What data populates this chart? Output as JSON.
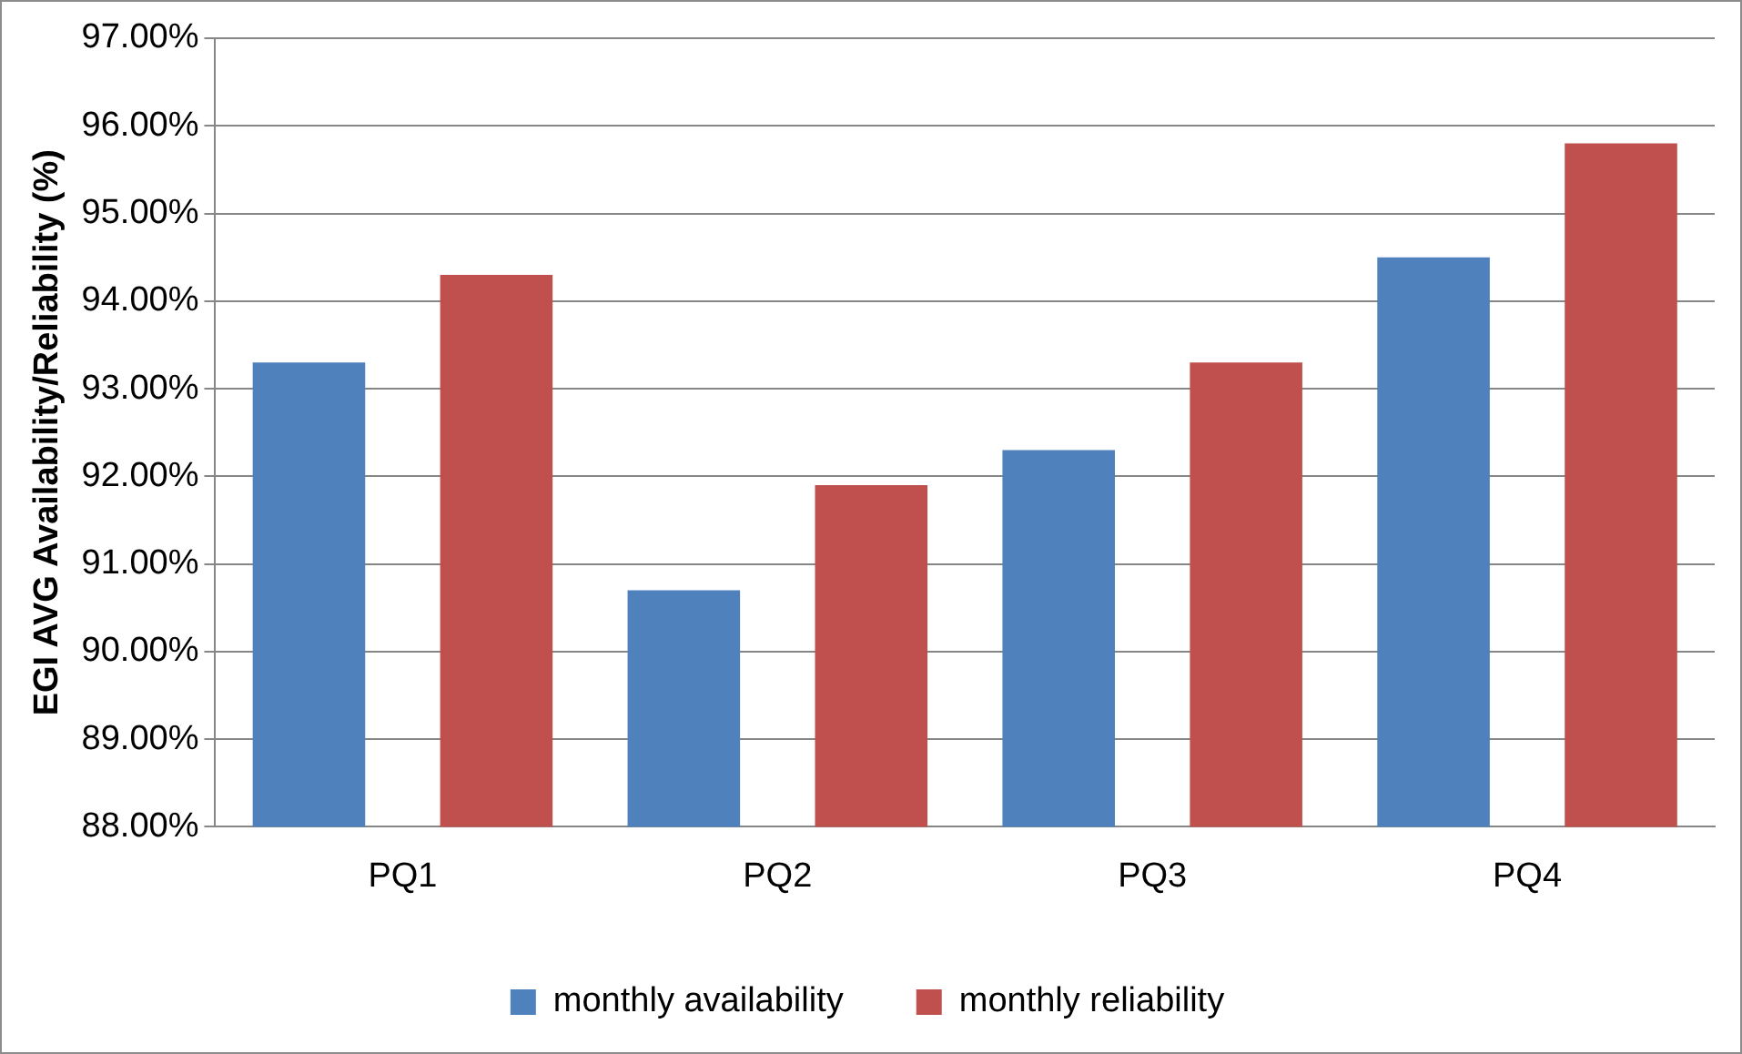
{
  "chart_data": {
    "type": "bar",
    "ylabel": "EGI AVG Availability/Reliability (%)",
    "categories": [
      "PQ1",
      "PQ2",
      "PQ3",
      "PQ4"
    ],
    "series": [
      {
        "name": "monthly availability",
        "color": "#4f81bd",
        "values": [
          93.3,
          90.7,
          92.3,
          94.5
        ]
      },
      {
        "name": "monthly reliability",
        "color": "#c0504d",
        "values": [
          94.3,
          91.9,
          93.3,
          95.8
        ]
      }
    ],
    "ylim": [
      88,
      97
    ],
    "yticks": [
      {
        "value": 88,
        "label": "88.00%"
      },
      {
        "value": 89,
        "label": "89.00%"
      },
      {
        "value": 90,
        "label": "90.00%"
      },
      {
        "value": 91,
        "label": "91.00%"
      },
      {
        "value": 92,
        "label": "92.00%"
      },
      {
        "value": 93,
        "label": "93.00%"
      },
      {
        "value": 94,
        "label": "94.00%"
      },
      {
        "value": 95,
        "label": "95.00%"
      },
      {
        "value": 96,
        "label": "96.00%"
      },
      {
        "value": 97,
        "label": "97.00%"
      }
    ],
    "grid": "y",
    "legend": "bottom"
  }
}
